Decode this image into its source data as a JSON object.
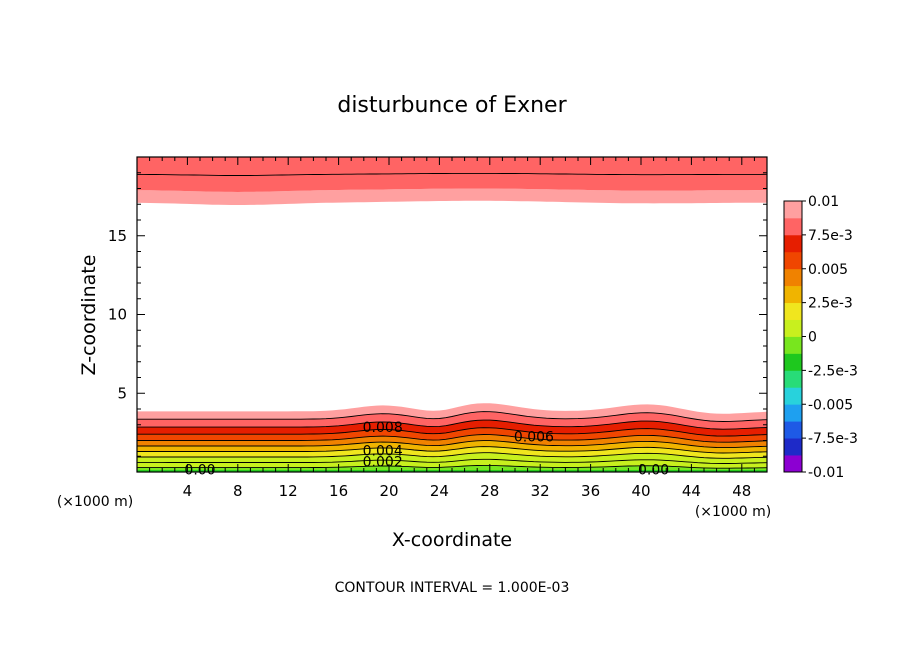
{
  "chart_data": {
    "type": "contour",
    "title": "disturbunce of Exner",
    "xlabel": "X-coordinate",
    "ylabel": "Z-coordinate",
    "x_unit": "(×1000 m)",
    "z_unit": "(×1000 m)",
    "xlim": [
      0,
      50
    ],
    "ylim": [
      0,
      20
    ],
    "x_ticks": [
      4,
      8,
      12,
      16,
      20,
      24,
      28,
      32,
      36,
      40,
      44,
      48
    ],
    "y_ticks": [
      5,
      10,
      15
    ],
    "footer": "CONTOUR INTERVAL = 1.000E-03",
    "colorbar": {
      "colors": [
        "#8c00d2",
        "#1e2ac8",
        "#1e5ae6",
        "#1ea0f0",
        "#28d2dc",
        "#28dc78",
        "#1ec81e",
        "#78e61e",
        "#c8f01e",
        "#f0e61e",
        "#f0b400",
        "#f08200",
        "#f04600",
        "#e61e00",
        "#ff6464",
        "#ffa0a0"
      ],
      "ticks": [
        "0.01",
        "7.5e-3",
        "0.005",
        "2.5e-3",
        "0",
        "-2.5e-3",
        "-0.005",
        "-7.5e-3",
        "-0.01"
      ]
    },
    "contour_labels": [
      {
        "text": "0.008",
        "x": 19.5,
        "z": 2.8
      },
      {
        "text": "0.006",
        "x": 31.5,
        "z": 2.2
      },
      {
        "text": "0.004",
        "x": 19.5,
        "z": 1.3
      },
      {
        "text": "0.002",
        "x": 19.5,
        "z": 0.6
      },
      {
        "text": "0.00",
        "x": 5,
        "z": 0.1
      },
      {
        "text": "0.00",
        "x": 41,
        "z": 0.1
      }
    ]
  }
}
